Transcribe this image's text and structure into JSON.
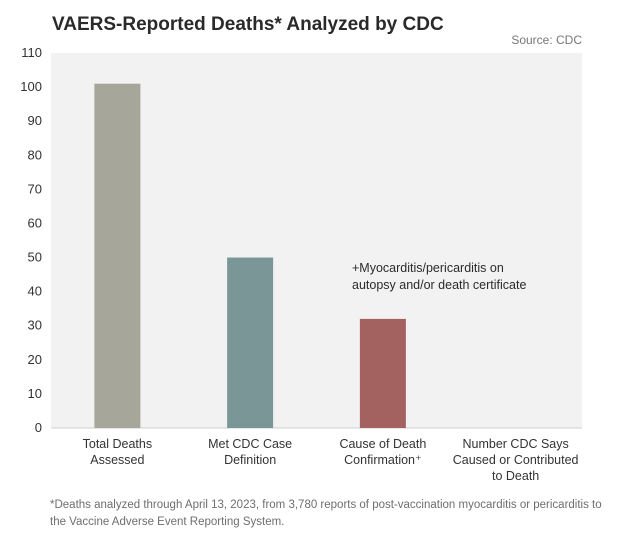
{
  "chart_data": {
    "type": "bar",
    "title": "VAERS-Reported Deaths* Analyzed by CDC",
    "source": "Source: CDC",
    "categories": [
      [
        "Total Deaths",
        "Assessed"
      ],
      [
        "Met CDC Case",
        "Definition"
      ],
      [
        "Cause of Death",
        "Confirmation⁺"
      ],
      [
        "Number CDC Says",
        "Caused or Contributed",
        "to Death"
      ]
    ],
    "values": [
      101,
      50,
      32,
      0
    ],
    "colors": [
      "#a7a69b",
      "#7b9697",
      "#a3625f",
      "#a3625f"
    ],
    "ylim": [
      0,
      110
    ],
    "yticks": [
      0,
      10,
      20,
      30,
      40,
      50,
      60,
      70,
      80,
      90,
      100,
      110
    ],
    "grid": false,
    "plot_background": "#f2f2f2",
    "annotation": [
      "+Myocarditis/pericarditis on",
      "autopsy and/or death certificate"
    ]
  },
  "footnote": "*Deaths analyzed through April 13, 2023, from 3,780 reports of post-vaccination myocarditis or pericarditis to the Vaccine Adverse Event Reporting System."
}
